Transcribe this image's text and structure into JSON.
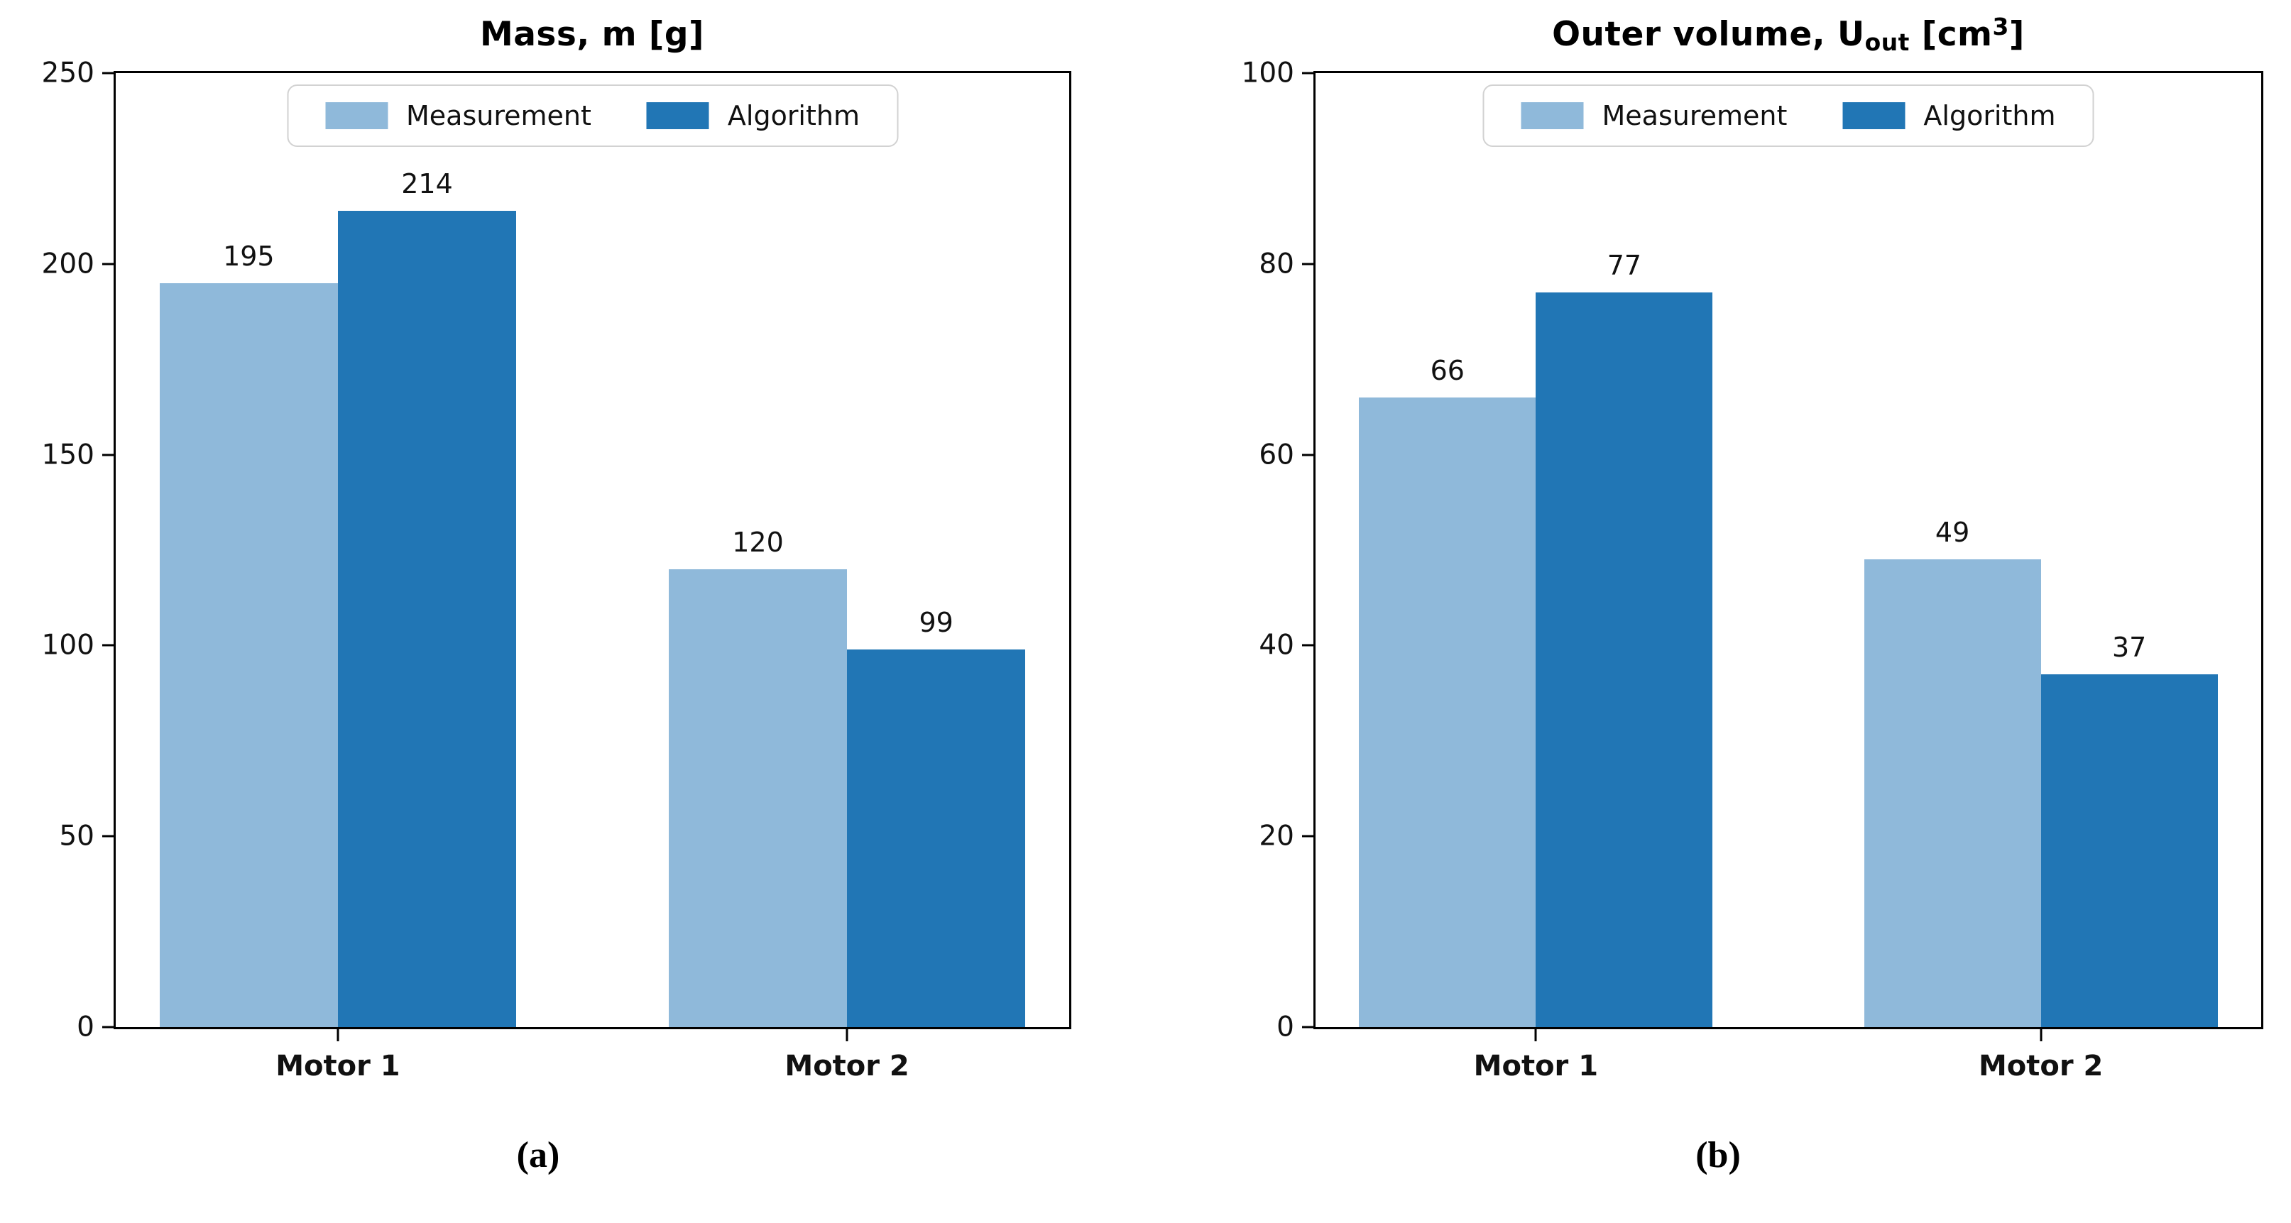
{
  "figure": {
    "background": "#ffffff"
  },
  "colors": {
    "measurement": "#8fb9da",
    "algorithm": "#2176b5",
    "axis": "#000000",
    "legend_border": "#d2d2d2",
    "text": "#111111"
  },
  "chart_data": [
    {
      "type": "bar",
      "panel": "a",
      "title_plain": "Mass, m [g]",
      "title_parts": {
        "prefix": "Mass, m [g]",
        "subscript": "",
        "mid": "",
        "superscript": "",
        "suffix": ""
      },
      "categories": [
        "Motor 1",
        "Motor 2"
      ],
      "series": [
        {
          "name": "Measurement",
          "values": [
            195,
            120
          ],
          "color": "#8fb9da"
        },
        {
          "name": "Algorithm",
          "values": [
            214,
            99
          ],
          "color": "#2176b5"
        }
      ],
      "ylim": [
        0,
        250
      ],
      "yticks": [
        0,
        50,
        100,
        150,
        200,
        250
      ],
      "bar_labels_shown": true,
      "legend_position": "upper center",
      "grid": false,
      "caption": "(a)"
    },
    {
      "type": "bar",
      "panel": "b",
      "title_plain": "Outer volume, U_out [cm^3]",
      "title_parts": {
        "prefix": "Outer volume, U",
        "subscript": "out",
        "mid": " [cm",
        "superscript": "3",
        "suffix": "]"
      },
      "categories": [
        "Motor 1",
        "Motor 2"
      ],
      "series": [
        {
          "name": "Measurement",
          "values": [
            66,
            49
          ],
          "color": "#8fb9da"
        },
        {
          "name": "Algorithm",
          "values": [
            77,
            37
          ],
          "color": "#2176b5"
        }
      ],
      "ylim": [
        0,
        100
      ],
      "yticks": [
        0,
        20,
        40,
        60,
        80,
        100
      ],
      "bar_labels_shown": true,
      "legend_position": "upper center",
      "grid": false,
      "caption": "(b)"
    }
  ]
}
